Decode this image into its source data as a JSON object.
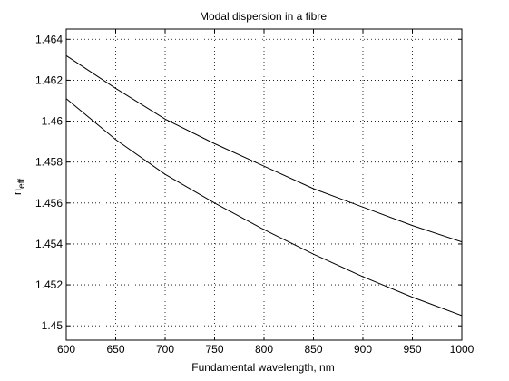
{
  "chart_data": {
    "type": "line",
    "title": "Modal dispersion in a fibre",
    "xlabel": "Fundamental wavelength, nm",
    "ylabel_main": "n",
    "ylabel_sub": "eff",
    "xlim": [
      600,
      1000
    ],
    "ylim": [
      1.4493,
      1.4645
    ],
    "x_ticks": [
      600,
      650,
      700,
      750,
      800,
      850,
      900,
      950,
      1000
    ],
    "x_tick_labels": [
      "600",
      "650",
      "700",
      "750",
      "800",
      "850",
      "900",
      "950",
      "1000"
    ],
    "y_ticks": [
      1.45,
      1.452,
      1.454,
      1.456,
      1.458,
      1.46,
      1.462,
      1.464
    ],
    "y_tick_labels": [
      "1.45",
      "1.452",
      "1.454",
      "1.456",
      "1.458",
      "1.46",
      "1.462",
      "1.464"
    ],
    "grid": true,
    "x": [
      600,
      650,
      700,
      750,
      800,
      850,
      900,
      950,
      1000
    ],
    "series": [
      {
        "values": [
          1.4632,
          1.4616,
          1.4601,
          1.4589,
          1.4578,
          1.4567,
          1.4558,
          1.4549,
          1.4541
        ]
      },
      {
        "values": [
          1.4611,
          1.4591,
          1.4574,
          1.456,
          1.4547,
          1.4535,
          1.4524,
          1.4514,
          1.4505
        ]
      }
    ],
    "line_color": "#000000"
  }
}
